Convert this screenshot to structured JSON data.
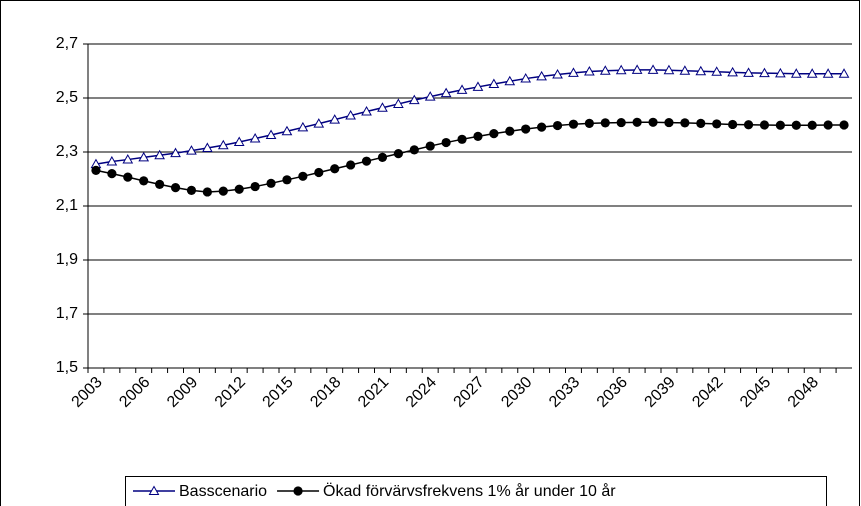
{
  "chart_data": {
    "type": "line",
    "categories": [
      "2003",
      null,
      null,
      "2006",
      null,
      null,
      "2009",
      null,
      null,
      "2012",
      null,
      null,
      "2015",
      null,
      null,
      "2018",
      null,
      null,
      "2021",
      null,
      null,
      "2024",
      null,
      null,
      "2027",
      null,
      null,
      "2030",
      null,
      null,
      "2033",
      null,
      null,
      "2036",
      null,
      null,
      "2039",
      null,
      null,
      "2042",
      null,
      null,
      "2045",
      null,
      null,
      "2048",
      null,
      null
    ],
    "series": [
      {
        "name": "Basscenario",
        "color": "#000080",
        "marker": "triangle",
        "values": [
          2.255,
          2.265,
          2.272,
          2.28,
          2.288,
          2.296,
          2.305,
          2.315,
          2.325,
          2.337,
          2.35,
          2.363,
          2.377,
          2.391,
          2.405,
          2.42,
          2.435,
          2.45,
          2.464,
          2.478,
          2.492,
          2.505,
          2.518,
          2.53,
          2.541,
          2.552,
          2.562,
          2.572,
          2.58,
          2.587,
          2.593,
          2.598,
          2.601,
          2.603,
          2.604,
          2.604,
          2.603,
          2.601,
          2.599,
          2.597,
          2.595,
          2.593,
          2.592,
          2.591,
          2.59,
          2.59,
          2.59,
          2.59
        ]
      },
      {
        "name": "Ökad förvärvsfrekvens 1% år under 10 år",
        "color": "#000000",
        "marker": "circle",
        "values": [
          2.232,
          2.22,
          2.207,
          2.193,
          2.18,
          2.168,
          2.158,
          2.152,
          2.155,
          2.162,
          2.172,
          2.184,
          2.197,
          2.21,
          2.224,
          2.238,
          2.252,
          2.266,
          2.28,
          2.294,
          2.308,
          2.322,
          2.335,
          2.347,
          2.358,
          2.368,
          2.377,
          2.385,
          2.392,
          2.398,
          2.403,
          2.406,
          2.408,
          2.409,
          2.41,
          2.41,
          2.409,
          2.408,
          2.406,
          2.404,
          2.402,
          2.401,
          2.4,
          2.399,
          2.399,
          2.399,
          2.4,
          2.4
        ]
      }
    ],
    "ylim": [
      1.5,
      2.7
    ],
    "yticks": [
      {
        "value": 1.5,
        "label": "1,5"
      },
      {
        "value": 1.7,
        "label": "1,7"
      },
      {
        "value": 1.9,
        "label": "1,9"
      },
      {
        "value": 2.1,
        "label": "2,1"
      },
      {
        "value": 2.3,
        "label": "2,3"
      },
      {
        "value": 2.5,
        "label": "2,5"
      },
      {
        "value": 2.7,
        "label": "2,7"
      }
    ],
    "grid": true,
    "legend": "bottom"
  }
}
